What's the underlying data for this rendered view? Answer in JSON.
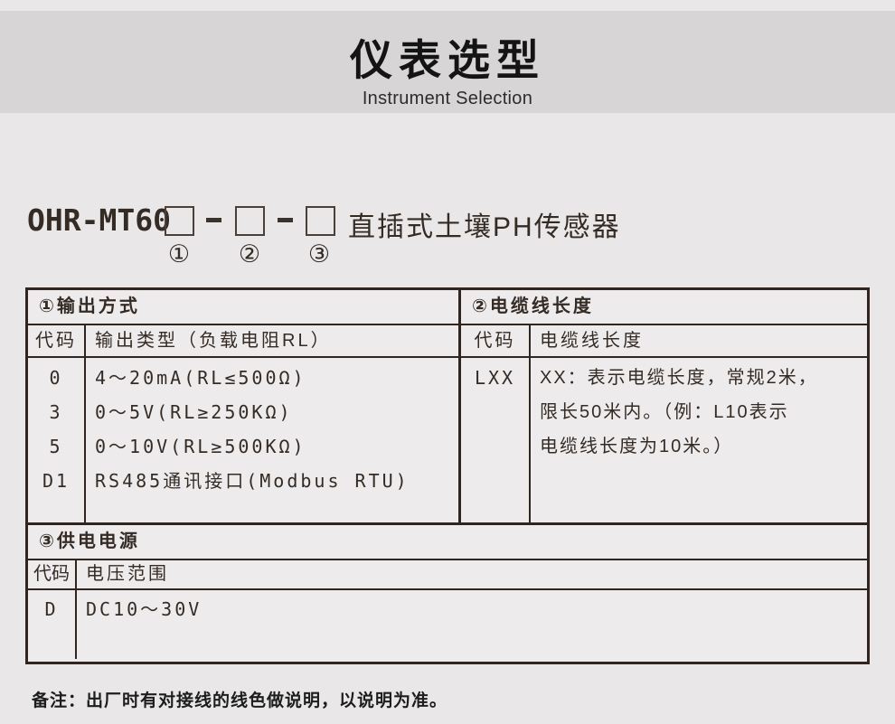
{
  "page": {
    "title": "仪表选型",
    "subtitle": "Instrument Selection"
  },
  "model": {
    "prefix": "OHR-MT60",
    "suffix": "直插式土壤PH传感器",
    "slot_labels": [
      "①",
      "②",
      "③"
    ]
  },
  "sections": {
    "output": {
      "title": "①输出方式",
      "col_code": "代码",
      "col_desc": "输出类型（负载电阻RL）",
      "rows": [
        {
          "code": "0",
          "desc": "4～20mA(RL≤500Ω)"
        },
        {
          "code": "3",
          "desc": "0～5V(RL≥250KΩ)"
        },
        {
          "code": "5",
          "desc": "0～10V(RL≥500KΩ)"
        },
        {
          "code": "D1",
          "desc": "RS485通讯接口(Modbus RTU)"
        }
      ]
    },
    "cable": {
      "title": "②电缆线长度",
      "col_code": "代码",
      "col_desc": "电缆线长度",
      "code": "LXX",
      "desc_lines": [
        "XX：表示电缆长度，常规2米，",
        "限长50米内。（例：L10表示",
        "电缆线长度为10米。）"
      ]
    },
    "power": {
      "title": "③供电电源",
      "col_code": "代码",
      "col_desc": "电压范围",
      "code": "D",
      "desc": "DC10～30V"
    }
  },
  "note": "备注：出厂时有对接线的线色做说明，以说明为准。"
}
